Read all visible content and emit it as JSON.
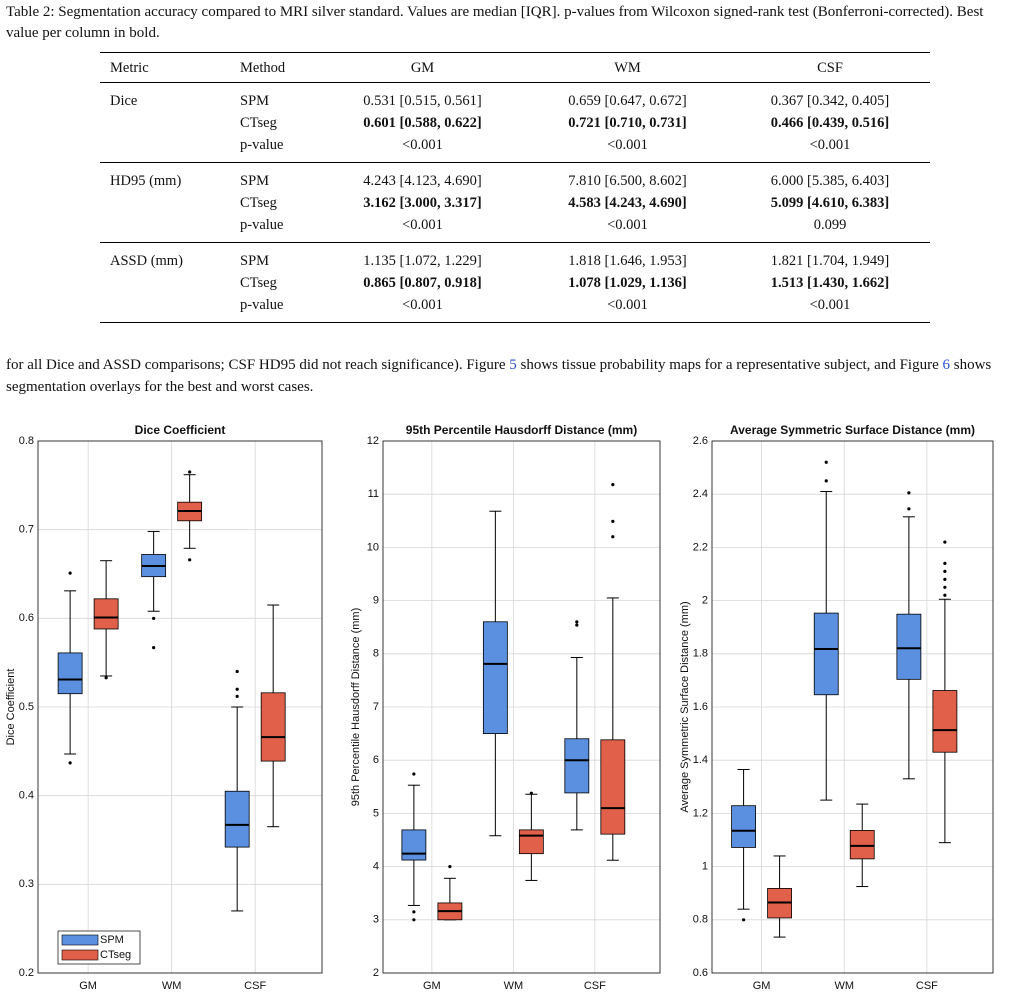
{
  "caption": "Table 2: Segmentation accuracy compared to MRI silver standard. Values are median [IQR]. p-values from Wilcoxon signed-rank test (Bonferroni-corrected). Best value per column in bold.",
  "table": {
    "header": [
      "Metric",
      "Method",
      "GM",
      "WM",
      "CSF"
    ],
    "best_method": "CTseg",
    "groups": [
      {
        "metric": "Dice",
        "rows": [
          [
            "SPM",
            "0.531 [0.515, 0.561]",
            "0.659 [0.647, 0.672]",
            "0.367 [0.342, 0.405]"
          ],
          [
            "CTseg",
            "0.601 [0.588, 0.622]",
            "0.721 [0.710, 0.731]",
            "0.466 [0.439, 0.516]"
          ],
          [
            "p-value",
            "<0.001",
            "<0.001",
            "<0.001"
          ]
        ]
      },
      {
        "metric": "HD95 (mm)",
        "rows": [
          [
            "SPM",
            "4.243 [4.123, 4.690]",
            "7.810 [6.500, 8.602]",
            "6.000 [5.385, 6.403]"
          ],
          [
            "CTseg",
            "3.162 [3.000, 3.317]",
            "4.583 [4.243, 4.690]",
            "5.099 [4.610, 6.383]"
          ],
          [
            "p-value",
            "<0.001",
            "<0.001",
            "0.099"
          ]
        ]
      },
      {
        "metric": "ASSD (mm)",
        "rows": [
          [
            "SPM",
            "1.135 [1.072, 1.229]",
            "1.818 [1.646, 1.953]",
            "1.821 [1.704, 1.949]"
          ],
          [
            "CTseg",
            "0.865 [0.807, 0.918]",
            "1.078 [1.029, 1.136]",
            "1.513 [1.430, 1.662]"
          ],
          [
            "p-value",
            "<0.001",
            "<0.001",
            "<0.001"
          ]
        ]
      }
    ]
  },
  "paragraph": [
    "for all Dice and ASSD comparisons; CSF HD95 did not reach significance). Figure ",
    "5",
    " shows tissue probability maps for a representative subject, and Figure ",
    "6",
    " shows segmentation overlays for the best and worst cases."
  ],
  "chart_data": [
    {
      "type": "box",
      "title": "Dice Coefficient",
      "y_label": "Dice Coefficient",
      "categories": [
        "GM",
        "WM",
        "CSF"
      ],
      "ylim": [
        0.2,
        0.8
      ],
      "yticks": [
        0.2,
        0.3,
        0.4,
        0.5,
        0.6,
        0.7,
        0.8
      ],
      "grid": true,
      "legend": "lower left",
      "series": [
        {
          "name": "SPM",
          "color": "#5b8fe0",
          "boxes": [
            {
              "low": 0.447,
              "q1": 0.515,
              "median": 0.531,
              "q3": 0.561,
              "high": 0.631,
              "outliers": [
                0.437,
                0.651
              ]
            },
            {
              "low": 0.608,
              "q1": 0.647,
              "median": 0.659,
              "q3": 0.672,
              "high": 0.698,
              "outliers": [
                0.567,
                0.6
              ]
            },
            {
              "low": 0.27,
              "q1": 0.342,
              "median": 0.367,
              "q3": 0.405,
              "high": 0.5,
              "outliers": [
                0.512,
                0.52,
                0.54
              ]
            }
          ]
        },
        {
          "name": "CTseg",
          "color": "#e0604a",
          "boxes": [
            {
              "low": 0.535,
              "q1": 0.588,
              "median": 0.601,
              "q3": 0.622,
              "high": 0.665,
              "outliers": [
                0.533
              ]
            },
            {
              "low": 0.679,
              "q1": 0.71,
              "median": 0.721,
              "q3": 0.731,
              "high": 0.762,
              "outliers": [
                0.666,
                0.765
              ]
            },
            {
              "low": 0.365,
              "q1": 0.439,
              "median": 0.466,
              "q3": 0.516,
              "high": 0.615,
              "outliers": []
            }
          ]
        }
      ]
    },
    {
      "type": "box",
      "title": "95th Percentile Hausdorff Distance (mm)",
      "y_label": "95th Percentile Hausdorff Distance (mm)",
      "categories": [
        "GM",
        "WM",
        "CSF"
      ],
      "ylim": [
        2,
        12
      ],
      "yticks": [
        2,
        3,
        4,
        5,
        6,
        7,
        8,
        9,
        10,
        11,
        12
      ],
      "grid": true,
      "series": [
        {
          "name": "SPM",
          "color": "#5b8fe0",
          "boxes": [
            {
              "low": 3.27,
              "q1": 4.123,
              "median": 4.243,
              "q3": 4.69,
              "high": 5.53,
              "outliers": [
                3.0,
                3.15,
                5.74
              ]
            },
            {
              "low": 4.58,
              "q1": 6.5,
              "median": 7.81,
              "q3": 8.602,
              "high": 10.68,
              "outliers": []
            },
            {
              "low": 4.69,
              "q1": 5.385,
              "median": 6.0,
              "q3": 6.403,
              "high": 7.93,
              "outliers": [
                8.54,
                8.6
              ]
            }
          ]
        },
        {
          "name": "CTseg",
          "color": "#e0604a",
          "boxes": [
            {
              "low": 3.0,
              "q1": 3.0,
              "median": 3.162,
              "q3": 3.317,
              "high": 3.78,
              "outliers": [
                4.0
              ]
            },
            {
              "low": 3.74,
              "q1": 4.243,
              "median": 4.583,
              "q3": 4.69,
              "high": 5.36,
              "outliers": [
                5.38
              ]
            },
            {
              "low": 4.12,
              "q1": 4.61,
              "median": 5.099,
              "q3": 6.383,
              "high": 9.05,
              "outliers": [
                10.2,
                10.49,
                11.18
              ]
            }
          ]
        }
      ]
    },
    {
      "type": "box",
      "title": "Average Symmetric Surface Distance (mm)",
      "y_label": "Average Symmetric Surface Distance (mm)",
      "categories": [
        "GM",
        "WM",
        "CSF"
      ],
      "ylim": [
        0.6,
        2.6
      ],
      "yticks": [
        0.6,
        0.8,
        1,
        1.2,
        1.4,
        1.6,
        1.8,
        2,
        2.2,
        2.4,
        2.6
      ],
      "grid": true,
      "series": [
        {
          "name": "SPM",
          "color": "#5b8fe0",
          "boxes": [
            {
              "low": 0.84,
              "q1": 1.072,
              "median": 1.135,
              "q3": 1.229,
              "high": 1.365,
              "outliers": [
                0.8
              ]
            },
            {
              "low": 1.25,
              "q1": 1.646,
              "median": 1.818,
              "q3": 1.953,
              "high": 2.41,
              "outliers": [
                2.45,
                2.52
              ]
            },
            {
              "low": 1.33,
              "q1": 1.704,
              "median": 1.821,
              "q3": 1.949,
              "high": 2.315,
              "outliers": [
                2.345,
                2.405
              ]
            }
          ]
        },
        {
          "name": "CTseg",
          "color": "#e0604a",
          "boxes": [
            {
              "low": 0.735,
              "q1": 0.807,
              "median": 0.865,
              "q3": 0.918,
              "high": 1.04,
              "outliers": []
            },
            {
              "low": 0.925,
              "q1": 1.029,
              "median": 1.078,
              "q3": 1.136,
              "high": 1.235,
              "outliers": []
            },
            {
              "low": 1.09,
              "q1": 1.43,
              "median": 1.513,
              "q3": 1.662,
              "high": 2.005,
              "outliers": [
                2.02,
                2.05,
                2.08,
                2.11,
                2.14,
                2.22
              ]
            }
          ]
        }
      ]
    }
  ]
}
